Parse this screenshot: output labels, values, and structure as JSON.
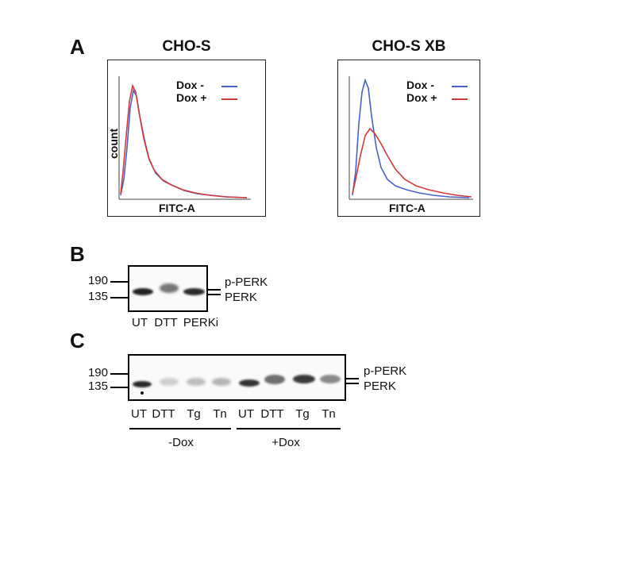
{
  "panels": {
    "a": {
      "letter": "A"
    },
    "b": {
      "letter": "B"
    },
    "c": {
      "letter": "C"
    }
  },
  "histograms": [
    {
      "title": "CHO-S",
      "xlabel": "FITC-A",
      "ylabel": "count",
      "legend": [
        {
          "label": "Dox -",
          "color": "#4a5fd0"
        },
        {
          "label": "Dox +",
          "color": "#d23a3a"
        }
      ]
    },
    {
      "title": "CHO-S XB",
      "xlabel": "FITC-A",
      "ylabel": "",
      "legend": [
        {
          "label": "Dox -",
          "color": "#4a5fd0"
        },
        {
          "label": "Dox +",
          "color": "#d23a3a"
        }
      ]
    }
  ],
  "blot_b": {
    "markers": [
      "190",
      "135"
    ],
    "bands_right": [
      "p-PERK",
      "PERK"
    ],
    "lanes": [
      "UT",
      "DTT",
      "PERKi"
    ]
  },
  "blot_c": {
    "markers": [
      "190",
      "135"
    ],
    "bands_right": [
      "p-PERK",
      "PERK"
    ],
    "lanes": [
      "UT",
      "DTT",
      "Tg",
      "Tn",
      "UT",
      "DTT",
      "Tg",
      "Tn"
    ],
    "groups": [
      "-Dox",
      "+Dox"
    ]
  }
}
